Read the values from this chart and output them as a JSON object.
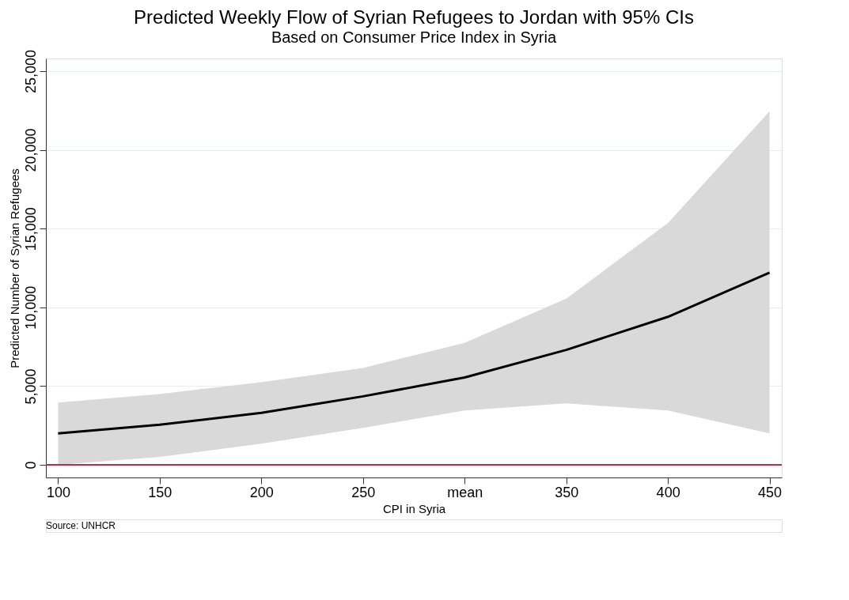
{
  "chart_data": {
    "type": "line",
    "title": "Predicted Weekly Flow of Syrian Refugees to Jordan with 95% CIs",
    "subtitle": "Based on Consumer Price Index in Syria",
    "xlabel": "CPI in Syria",
    "ylabel": "Predicted Number of Syrian Refugees",
    "x": [
      100,
      150,
      200,
      250,
      300,
      350,
      400,
      450
    ],
    "series": [
      {
        "color": "#000000",
        "values": [
          2000,
          2550,
          3300,
          4350,
          5550,
          7300,
          9400,
          12200
        ],
        "lower": [
          0,
          500,
          1350,
          2350,
          3450,
          3900,
          3450,
          2000
        ],
        "upper": [
          3950,
          4500,
          5250,
          6150,
          7750,
          10550,
          15350,
          22450
        ]
      }
    ],
    "xlim": [
      94,
      456
    ],
    "xticks": [
      100,
      150,
      200,
      250,
      {
        "value": 300,
        "label": "mean"
      },
      350,
      400,
      450
    ],
    "ylim": [
      -800,
      25800
    ],
    "yticks": [
      0,
      {
        "value": 5000,
        "label": "5,000"
      },
      {
        "value": 10000,
        "label": "10,000"
      },
      {
        "value": 15000,
        "label": "15,000"
      },
      {
        "value": 20000,
        "label": "20,000"
      },
      {
        "value": 25000,
        "label": "25,000"
      }
    ],
    "ref_lines": [
      {
        "axis": "y",
        "value": 0,
        "color": "#c8254a"
      }
    ],
    "grid": "y",
    "marker": "none",
    "line_style": "solid",
    "annotations": [
      "Source: UNHCR"
    ]
  }
}
